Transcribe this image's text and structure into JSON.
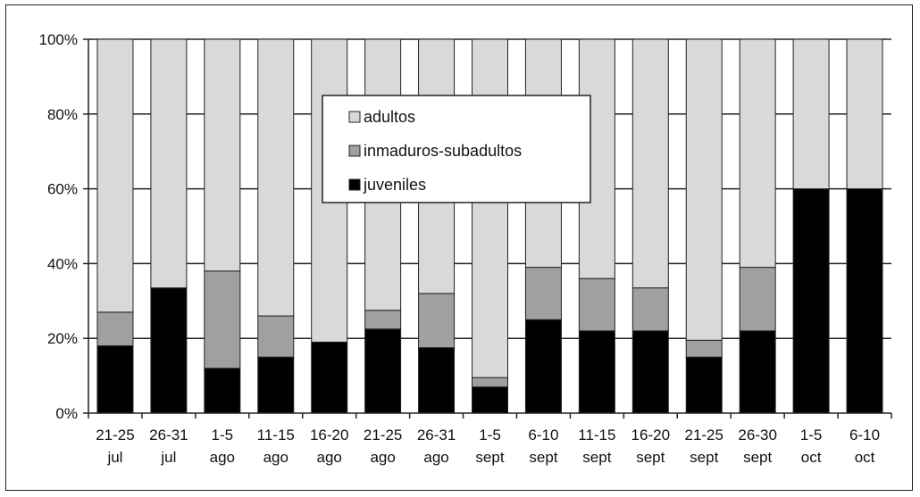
{
  "chart_data": {
    "type": "bar",
    "stacked": true,
    "percent": true,
    "title": "",
    "xlabel": "",
    "ylabel": "",
    "ylim": [
      0,
      100
    ],
    "yticks": [
      "0%",
      "20%",
      "40%",
      "60%",
      "80%",
      "100%"
    ],
    "categories": [
      [
        "21-25",
        "jul"
      ],
      [
        "26-31",
        "jul"
      ],
      [
        "1-5",
        "ago"
      ],
      [
        "11-15",
        "ago"
      ],
      [
        "16-20",
        "ago"
      ],
      [
        "21-25",
        "ago"
      ],
      [
        "26-31",
        "ago"
      ],
      [
        "1-5",
        "sept"
      ],
      [
        "6-10",
        "sept"
      ],
      [
        "11-15",
        "sept"
      ],
      [
        "16-20",
        "sept"
      ],
      [
        "21-25",
        "sept"
      ],
      [
        "26-30",
        "sept"
      ],
      [
        "1-5",
        "oct"
      ],
      [
        "6-10",
        "oct"
      ]
    ],
    "series": [
      {
        "name": "juveniles",
        "color": "#000000",
        "values": [
          18,
          33.5,
          12,
          15,
          19,
          22.5,
          17.5,
          7,
          25,
          22,
          22,
          15,
          22,
          60,
          60
        ]
      },
      {
        "name": "inmaduros-subadultos",
        "color": "#a0a0a0",
        "values": [
          9,
          0,
          26,
          11,
          0,
          5,
          14.5,
          2.5,
          14,
          14,
          11.5,
          4.5,
          17,
          0,
          0
        ]
      },
      {
        "name": "adultos",
        "color": "#d9d9d9",
        "values": [
          73,
          66.5,
          62,
          74,
          81,
          72.5,
          68,
          90.5,
          61,
          64,
          66.5,
          80.5,
          61,
          40,
          40
        ]
      }
    ],
    "legend": {
      "placement": "inside-top-center",
      "order": [
        "adultos",
        "inmaduros-subadultos",
        "juveniles"
      ]
    },
    "grid": true
  }
}
